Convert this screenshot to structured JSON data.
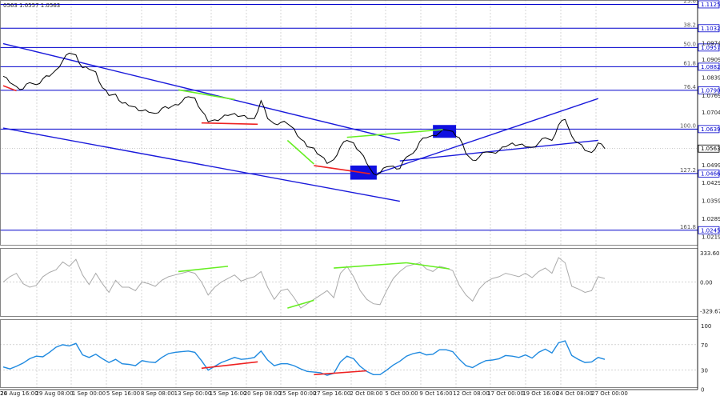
{
  "chart_data": {
    "type": "line",
    "header_text": "0563 1.0557 1.0563",
    "colors": {
      "price": "#000000",
      "fib": "#0000cc",
      "channel": "#1a1adb",
      "box": "#1010e0",
      "bull_div": "#66ee22",
      "bear_div": "#ee2222",
      "cci": "#aaaaaa",
      "rsi": "#1f8ae0",
      "grid": "#bbbbbb"
    },
    "x_labels": [
      "20",
      "24 Aug 16:00",
      "29 Aug 08:00",
      "1 Sep 00:00",
      "5 Sep 16:00",
      "8 Sep 08:00",
      "13 Sep 00:00",
      "15 Sep 16:00",
      "20 Sep 08:00",
      "25 Sep 00:00",
      "27 Sep 16:00",
      "2 Oct 08:00",
      "5 Oct 00:00",
      "9 Oct 16:00",
      "12 Oct 08:00",
      "17 Oct 00:00",
      "19 Oct 16:00",
      "24 Oct 08:00",
      "27 Oct 00:00"
    ],
    "main": {
      "ylim": [
        1.0185,
        1.1142
      ],
      "right_labels": [
        "1.0974",
        "1.0909",
        "1.0839",
        "1.0769",
        "1.0704",
        "1.0499",
        "1.0429",
        "1.0359",
        "1.0289",
        "1.0219"
      ],
      "fib_levels": [
        {
          "name": "23.6",
          "tag": "1.1125",
          "value": 1.1125
        },
        {
          "name": "38.2",
          "tag": "1.1032",
          "value": 1.1032
        },
        {
          "name": "50.0",
          "tag": "1.0957",
          "value": 1.0957
        },
        {
          "name": "61.8",
          "tag": "1.0882",
          "value": 1.0882
        },
        {
          "name": "76.4",
          "tag": "1.0790",
          "value": 1.079
        },
        {
          "name": "100.0",
          "tag": "1.0639",
          "value": 1.0639
        },
        {
          "name": "127.2",
          "tag": "1.0466",
          "value": 1.0466
        },
        {
          "name": "161.8",
          "tag": "1.0245",
          "value": 1.0245
        }
      ],
      "current": {
        "tag": "1.0563",
        "value": 1.0563
      },
      "price": {
        "x": [
          0,
          2,
          4,
          6,
          8,
          10,
          12,
          14,
          16,
          18,
          20,
          22,
          24,
          26,
          28,
          30,
          32,
          34,
          36,
          38,
          40,
          42,
          44,
          46,
          48,
          50,
          52,
          54,
          56,
          58,
          60,
          62,
          64,
          66,
          68,
          70,
          72,
          74,
          76,
          78,
          80,
          82,
          84,
          86,
          88,
          90,
          92,
          94,
          96,
          98,
          100,
          102,
          104,
          106,
          108,
          110,
          112,
          114,
          116,
          118,
          120,
          122,
          124,
          126,
          128,
          130,
          132,
          134,
          136,
          138,
          140,
          142,
          144,
          146,
          148,
          150,
          152,
          154,
          156,
          158,
          160,
          162,
          164,
          166,
          168,
          170,
          172,
          174,
          176,
          178,
          180,
          182
        ],
        "y": [
          1.0845,
          1.082,
          1.0805,
          1.0795,
          1.082,
          1.0812,
          1.0835,
          1.0845,
          1.087,
          1.0905,
          1.0935,
          1.0928,
          1.0878,
          1.0872,
          1.0862,
          1.08,
          1.077,
          1.0775,
          1.074,
          1.073,
          1.0725,
          1.071,
          1.0705,
          1.07,
          1.072,
          1.072,
          1.0735,
          1.0745,
          1.0765,
          1.076,
          1.071,
          1.0668,
          1.0675,
          1.0682,
          1.0692,
          1.07,
          1.069,
          1.068,
          1.068,
          1.075,
          1.068,
          1.066,
          1.0665,
          1.066,
          1.064,
          1.06,
          1.057,
          1.0565,
          1.0535,
          1.0505,
          1.052,
          1.057,
          1.0595,
          1.0585,
          1.055,
          1.0505,
          1.0465,
          1.0468,
          1.0492,
          1.0495,
          1.0485,
          1.053,
          1.0545,
          1.059,
          1.0605,
          1.0615,
          1.0625,
          1.0635,
          1.063,
          1.0605,
          1.0543,
          1.0518,
          1.053,
          1.055,
          1.0548,
          1.0555,
          1.057,
          1.0585,
          1.0578,
          1.057,
          1.0568,
          1.0585,
          1.0605,
          1.0595,
          1.0655,
          1.0677,
          1.0612,
          1.0585,
          1.0556,
          1.0548,
          1.0585,
          1.0563
        ]
      },
      "channels": [
        {
          "x": [
            0,
            120
          ],
          "y": [
            1.0972,
            1.0595
          ]
        },
        {
          "x": [
            0,
            120
          ],
          "y": [
            1.0643,
            1.0358
          ]
        },
        {
          "x": [
            113,
            180
          ],
          "y": [
            1.0466,
            1.0758
          ]
        },
        {
          "x": [
            120,
            180
          ],
          "y": [
            1.0515,
            1.0595
          ]
        }
      ],
      "bull_divergences": [
        {
          "x": [
            53,
            70
          ],
          "y": [
            1.0792,
            1.0754
          ]
        },
        {
          "x": [
            104,
            133
          ],
          "y": [
            1.0607,
            1.0637
          ]
        }
      ],
      "bear_divergences": [
        {
          "x": [
            0,
            4
          ],
          "y": [
            1.0808,
            1.0788
          ]
        },
        {
          "x": [
            60,
            77
          ],
          "y": [
            1.0663,
            1.0658
          ]
        },
        {
          "x": [
            94,
            111
          ],
          "y": [
            1.0497,
            1.0465
          ]
        }
      ],
      "bull_segments": [
        {
          "x": [
            86,
            94
          ],
          "y": [
            1.0595,
            1.0503
          ]
        }
      ],
      "boxes": [
        {
          "x": [
            105,
            113
          ],
          "y": [
            1.0442,
            1.0497
          ]
        },
        {
          "x": [
            130,
            137
          ],
          "y": [
            1.0605,
            1.0655
          ]
        }
      ]
    },
    "cci": {
      "ylim": [
        -400,
        390
      ],
      "right_labels": [
        "333.6036",
        "0.00",
        "-329.675"
      ],
      "values": [
        0,
        60,
        100,
        -20,
        -60,
        -40,
        60,
        110,
        140,
        230,
        180,
        260,
        80,
        -30,
        100,
        -20,
        -120,
        20,
        -60,
        -60,
        -100,
        0,
        -20,
        -50,
        20,
        60,
        80,
        100,
        120,
        100,
        0,
        -150,
        -60,
        0,
        40,
        80,
        10,
        40,
        60,
        120,
        -60,
        -200,
        -100,
        -80,
        -180,
        -300,
        -250,
        -200,
        -150,
        -100,
        -180,
        100,
        180,
        60,
        -100,
        -200,
        -250,
        -260,
        -100,
        40,
        120,
        180,
        200,
        220,
        150,
        120,
        180,
        160,
        130,
        -40,
        -150,
        -220,
        -80,
        0,
        40,
        60,
        100,
        80,
        60,
        100,
        50,
        120,
        160,
        100,
        280,
        220,
        -50,
        -80,
        -120,
        -100,
        60,
        40
      ]
    },
    "cci_bull_divs": [
      {
        "x": [
          53,
          68
        ],
        "y": [
          120,
          180
        ]
      },
      {
        "x": [
          100,
          122
        ],
        "y": [
          160,
          220
        ]
      },
      {
        "x": [
          122,
          135
        ],
        "y": [
          220,
          150
        ]
      },
      {
        "x": [
          86,
          94
        ],
        "y": [
          -300,
          -210
        ]
      }
    ],
    "rsi": {
      "ylim": [
        2,
        110
      ],
      "right_labels": [
        "100",
        "70",
        "30",
        "0"
      ],
      "values": [
        35,
        32,
        36,
        41,
        48,
        52,
        51,
        58,
        66,
        70,
        68,
        72,
        54,
        50,
        55,
        48,
        42,
        47,
        40,
        39,
        37,
        45,
        43,
        42,
        50,
        56,
        58,
        59,
        60,
        58,
        45,
        30,
        36,
        42,
        46,
        50,
        47,
        48,
        50,
        60,
        46,
        37,
        40,
        40,
        37,
        32,
        28,
        27,
        26,
        22,
        25,
        43,
        52,
        48,
        36,
        28,
        23,
        23,
        30,
        38,
        44,
        52,
        56,
        58,
        54,
        55,
        62,
        62,
        59,
        47,
        37,
        34,
        40,
        45,
        46,
        48,
        53,
        52,
        50,
        54,
        49,
        58,
        63,
        57,
        73,
        76,
        53,
        47,
        42,
        43,
        50,
        47
      ]
    },
    "rsi_bear_divs": [
      {
        "x": [
          60,
          77
        ],
        "y": [
          33,
          43
        ]
      },
      {
        "x": [
          94,
          110
        ],
        "y": [
          23,
          29
        ]
      }
    ]
  }
}
